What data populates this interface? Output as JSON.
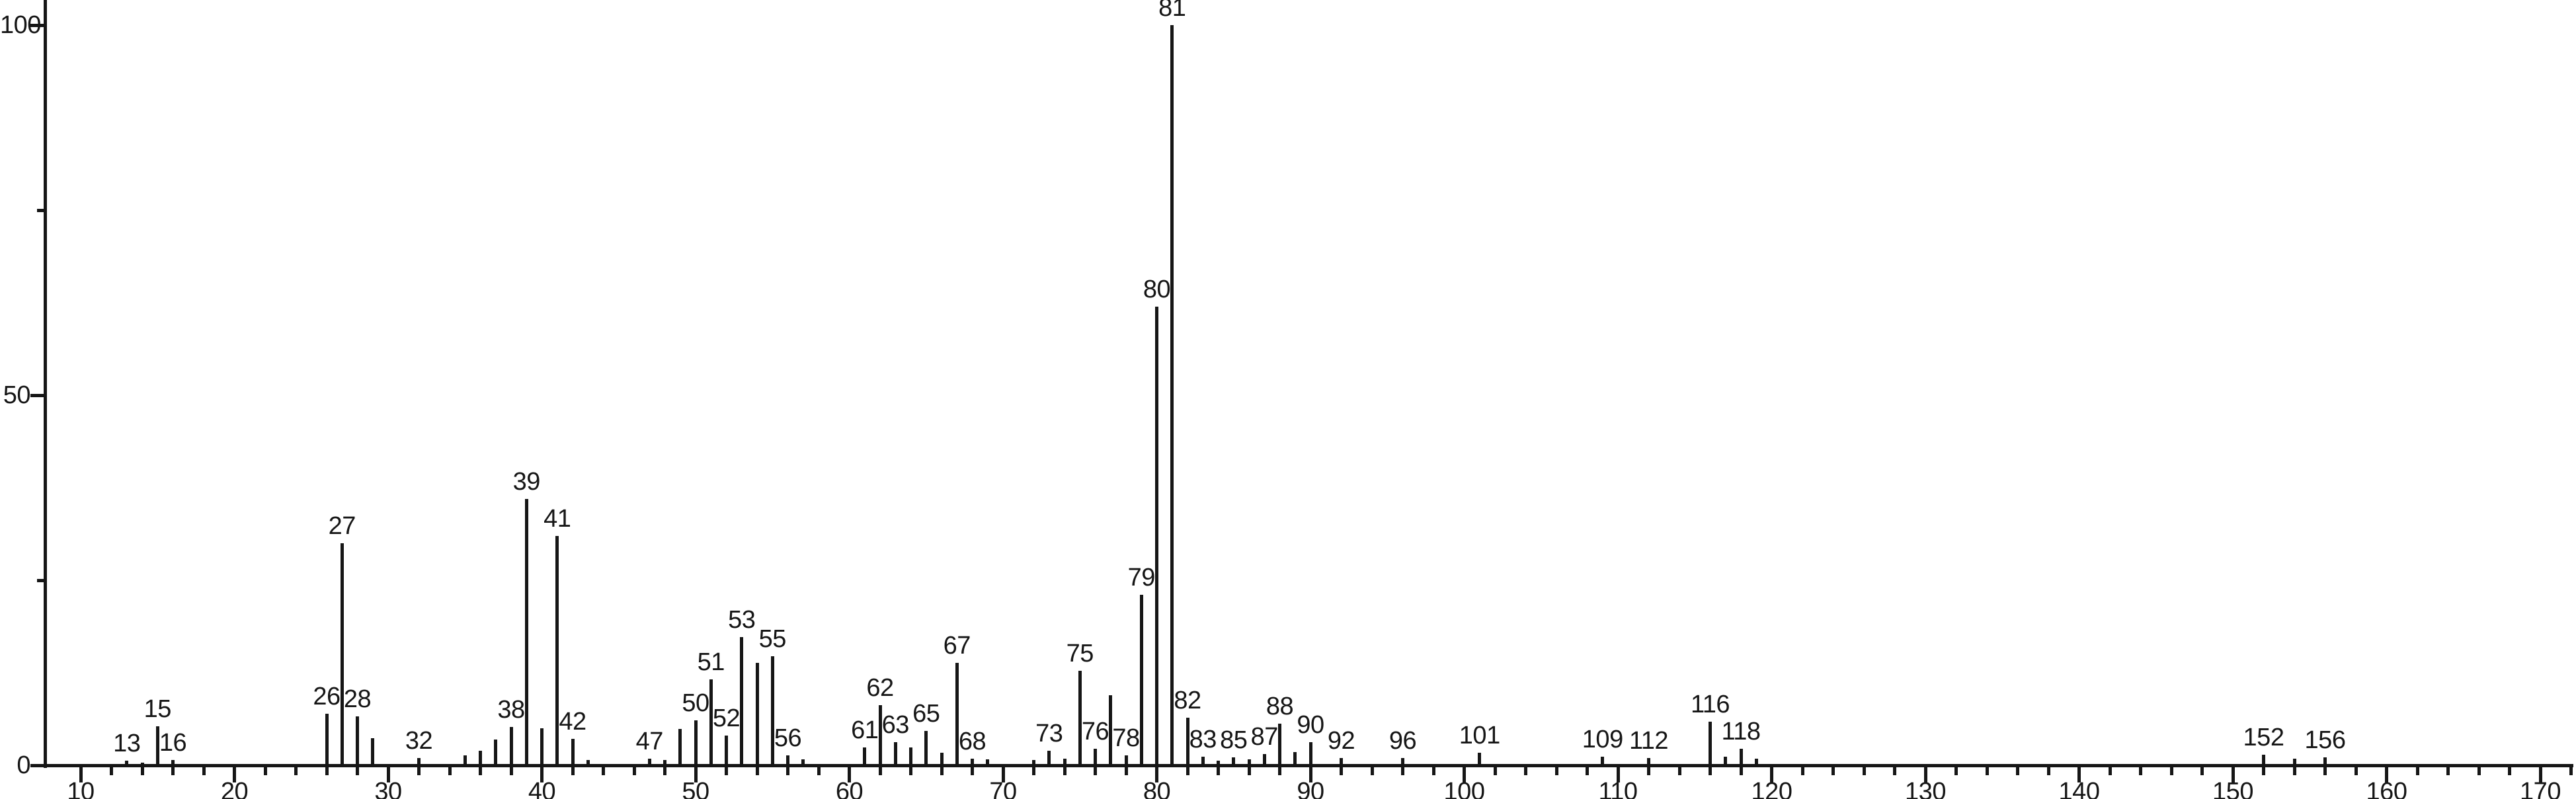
{
  "chart_data": {
    "type": "bar",
    "subtype": "mass-spectrum-stick-plot",
    "title": "",
    "xlabel": "",
    "ylabel": "",
    "legend": "none",
    "grid": "off",
    "background_color": "#ffffff",
    "line_color": "#161616",
    "text_color": "#161616",
    "x_axis": {
      "major_ticks": [
        10,
        20,
        30,
        40,
        50,
        60,
        70,
        80,
        90,
        100,
        110,
        120,
        130,
        140,
        150,
        160,
        170
      ],
      "major_tick_labels": [
        "10",
        "20",
        "30",
        "40",
        "50",
        "60",
        "70",
        "80",
        "90",
        "100",
        "110",
        "120",
        "130",
        "140",
        "150",
        "160",
        "170"
      ],
      "minor_tick_step": 2,
      "minor_tick_start": 10,
      "minor_tick_end": 172
    },
    "y_axis": {
      "major_ticks": [
        0,
        50,
        100
      ],
      "major_tick_labels": [
        "0",
        "50",
        "100"
      ],
      "minor_ticks": [
        25,
        75
      ],
      "range": [
        0,
        100
      ]
    },
    "peaks": [
      {
        "mz": 13,
        "intensity": 0.6,
        "labeled": true
      },
      {
        "mz": 14,
        "intensity": 0.4,
        "labeled": false
      },
      {
        "mz": 15,
        "intensity": 5.3,
        "labeled": true
      },
      {
        "mz": 16,
        "intensity": 0.7,
        "labeled": true
      },
      {
        "mz": 26,
        "intensity": 7.0,
        "labeled": true
      },
      {
        "mz": 27,
        "intensity": 30,
        "labeled": true
      },
      {
        "mz": 28,
        "intensity": 6.6,
        "labeled": true
      },
      {
        "mz": 29,
        "intensity": 3.7,
        "labeled": false
      },
      {
        "mz": 32,
        "intensity": 1.0,
        "labeled": true
      },
      {
        "mz": 35,
        "intensity": 1.3,
        "labeled": false
      },
      {
        "mz": 36,
        "intensity": 2.0,
        "labeled": false
      },
      {
        "mz": 37,
        "intensity": 3.5,
        "labeled": false
      },
      {
        "mz": 38,
        "intensity": 5.2,
        "labeled": true
      },
      {
        "mz": 39,
        "intensity": 36,
        "labeled": true
      },
      {
        "mz": 40,
        "intensity": 5.0,
        "labeled": false
      },
      {
        "mz": 41,
        "intensity": 31,
        "labeled": true
      },
      {
        "mz": 42,
        "intensity": 3.6,
        "labeled": true
      },
      {
        "mz": 43,
        "intensity": 0.7,
        "labeled": false
      },
      {
        "mz": 47,
        "intensity": 0.9,
        "labeled": true
      },
      {
        "mz": 48,
        "intensity": 0.7,
        "labeled": false
      },
      {
        "mz": 49,
        "intensity": 4.9,
        "labeled": false
      },
      {
        "mz": 50,
        "intensity": 6.1,
        "labeled": true
      },
      {
        "mz": 51,
        "intensity": 11.6,
        "labeled": true
      },
      {
        "mz": 52,
        "intensity": 4.0,
        "labeled": true
      },
      {
        "mz": 53,
        "intensity": 17.3,
        "labeled": true
      },
      {
        "mz": 54,
        "intensity": 13.8,
        "labeled": false
      },
      {
        "mz": 55,
        "intensity": 14.7,
        "labeled": true
      },
      {
        "mz": 56,
        "intensity": 1.3,
        "labeled": true
      },
      {
        "mz": 57,
        "intensity": 0.8,
        "labeled": false
      },
      {
        "mz": 61,
        "intensity": 2.4,
        "labeled": true
      },
      {
        "mz": 62,
        "intensity": 8.1,
        "labeled": true
      },
      {
        "mz": 63,
        "intensity": 3.1,
        "labeled": true
      },
      {
        "mz": 64,
        "intensity": 2.4,
        "labeled": false
      },
      {
        "mz": 65,
        "intensity": 4.6,
        "labeled": true
      },
      {
        "mz": 66,
        "intensity": 1.7,
        "labeled": false
      },
      {
        "mz": 67,
        "intensity": 13.8,
        "labeled": true
      },
      {
        "mz": 68,
        "intensity": 0.9,
        "labeled": true
      },
      {
        "mz": 69,
        "intensity": 0.8,
        "labeled": false
      },
      {
        "mz": 72,
        "intensity": 0.7,
        "labeled": false
      },
      {
        "mz": 73,
        "intensity": 2.0,
        "labeled": true
      },
      {
        "mz": 74,
        "intensity": 0.9,
        "labeled": false
      },
      {
        "mz": 75,
        "intensity": 12.8,
        "labeled": true
      },
      {
        "mz": 76,
        "intensity": 2.2,
        "labeled": true
      },
      {
        "mz": 77,
        "intensity": 9.5,
        "labeled": false
      },
      {
        "mz": 78,
        "intensity": 1.3,
        "labeled": true
      },
      {
        "mz": 79,
        "intensity": 23,
        "labeled": true
      },
      {
        "mz": 80,
        "intensity": 62,
        "labeled": true
      },
      {
        "mz": 81,
        "intensity": 100,
        "labeled": true
      },
      {
        "mz": 82,
        "intensity": 6.4,
        "labeled": true
      },
      {
        "mz": 83,
        "intensity": 1.2,
        "labeled": true
      },
      {
        "mz": 84,
        "intensity": 0.6,
        "labeled": false
      },
      {
        "mz": 85,
        "intensity": 1.1,
        "labeled": true
      },
      {
        "mz": 86,
        "intensity": 0.8,
        "labeled": false
      },
      {
        "mz": 87,
        "intensity": 1.5,
        "labeled": true
      },
      {
        "mz": 88,
        "intensity": 5.6,
        "labeled": true
      },
      {
        "mz": 89,
        "intensity": 1.8,
        "labeled": false
      },
      {
        "mz": 90,
        "intensity": 3.1,
        "labeled": true
      },
      {
        "mz": 92,
        "intensity": 1.0,
        "labeled": true
      },
      {
        "mz": 96,
        "intensity": 1.0,
        "labeled": true
      },
      {
        "mz": 101,
        "intensity": 1.7,
        "labeled": true
      },
      {
        "mz": 109,
        "intensity": 1.2,
        "labeled": true
      },
      {
        "mz": 112,
        "intensity": 1.0,
        "labeled": true
      },
      {
        "mz": 116,
        "intensity": 5.9,
        "labeled": true
      },
      {
        "mz": 117,
        "intensity": 1.2,
        "labeled": false
      },
      {
        "mz": 118,
        "intensity": 2.2,
        "labeled": true
      },
      {
        "mz": 119,
        "intensity": 0.9,
        "labeled": false
      },
      {
        "mz": 152,
        "intensity": 1.4,
        "labeled": true
      },
      {
        "mz": 154,
        "intensity": 0.9,
        "labeled": false
      },
      {
        "mz": 156,
        "intensity": 1.1,
        "labeled": true
      }
    ]
  }
}
